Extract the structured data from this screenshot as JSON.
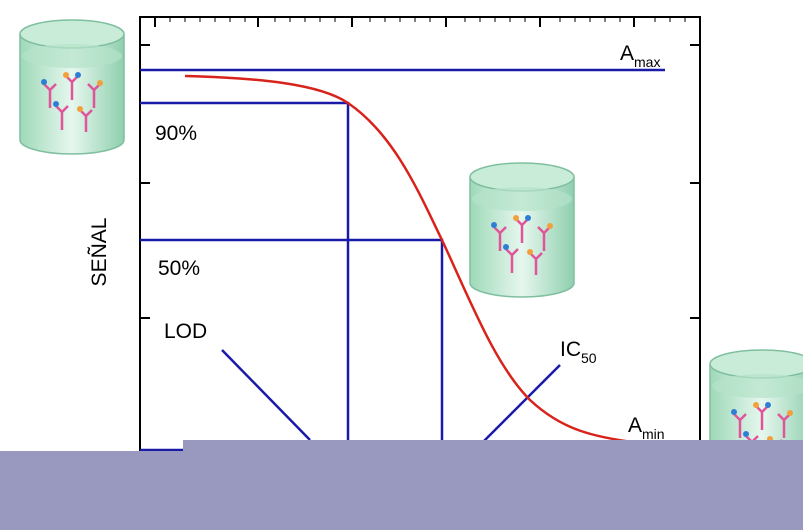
{
  "labels": {
    "a_max": {
      "main": "A",
      "sub": "max"
    },
    "p90": "90%",
    "p50": "50%",
    "y_axis": "SEÑAL",
    "lod": "LOD",
    "ic50": {
      "main": "IC",
      "sub": "50"
    },
    "a_min": {
      "main": "A",
      "sub": "min"
    }
  }
}
